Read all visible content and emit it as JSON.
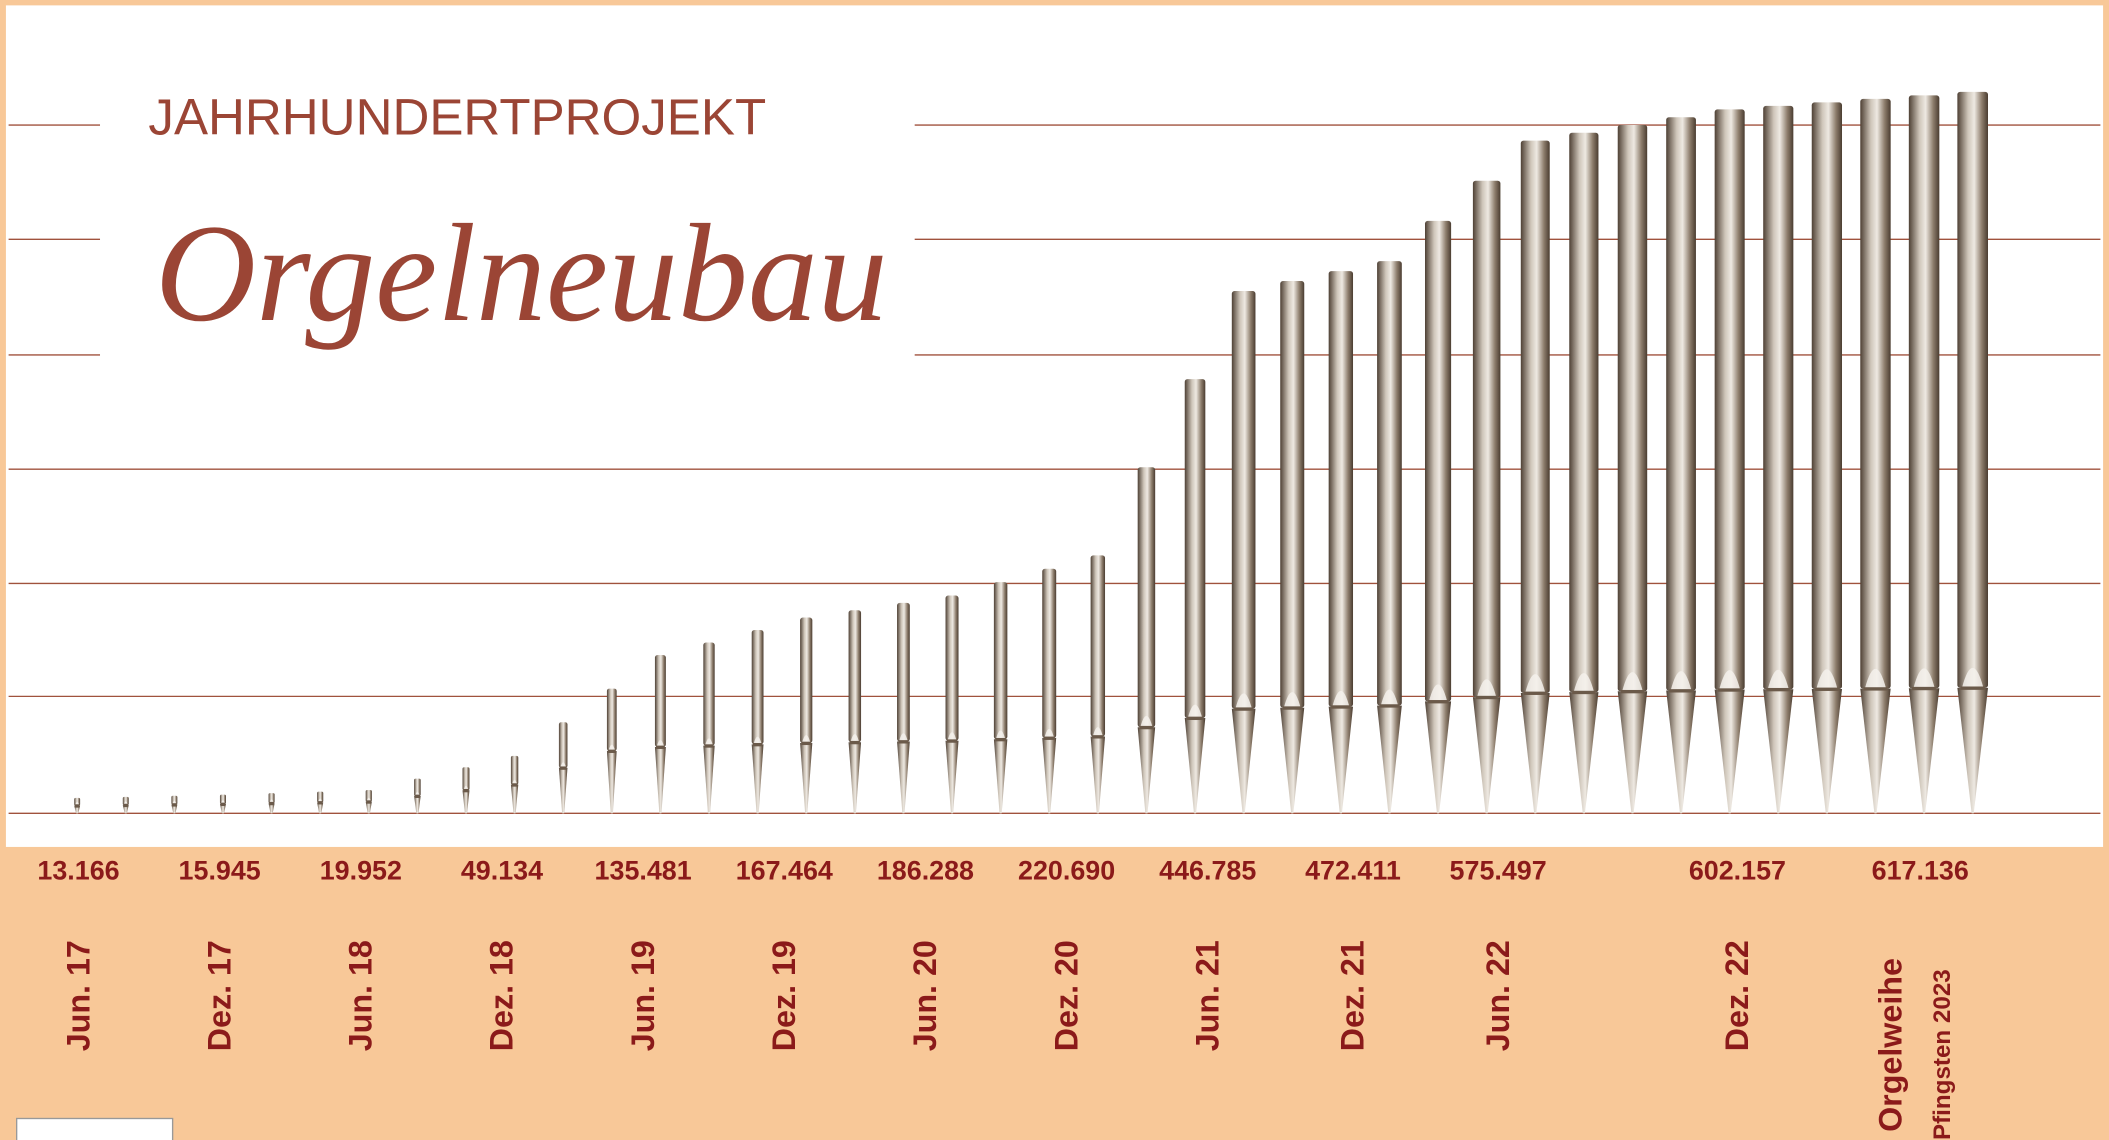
{
  "chart_data": {
    "type": "pipes",
    "title": "JAHRHUNDERTPROJEKT",
    "subtitle": "Orgelneubau",
    "categories": [
      "Jun. 17",
      "Dez. 17",
      "Jun. 18",
      "Dez. 18",
      "Jun. 19",
      "Dez. 19",
      "Jun. 20",
      "Dez. 20",
      "Jun. 21",
      "Dez. 21",
      "Jun. 22",
      "Dez. 22",
      "Orgelweihe"
    ],
    "annotation": "Pfingsten 2023",
    "values": [
      13166,
      15945,
      19952,
      49134,
      135481,
      167464,
      186288,
      220690,
      446785,
      472411,
      575497,
      602157,
      617136
    ],
    "value_labels": [
      "13.166",
      "15.945",
      "19.952",
      "49.134",
      "135.481",
      "167.464",
      "186.288",
      "220.690",
      "446.785",
      "472.411",
      "575.497",
      "602.157",
      "617.136"
    ],
    "color": "#8b1a1a",
    "grid": true
  }
}
